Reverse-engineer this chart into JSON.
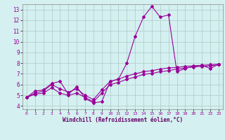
{
  "xlabel": "Windchill (Refroidissement éolien,°C)",
  "bg_color": "#d4f0f0",
  "line_color": "#990099",
  "grid_color": "#b0c8c8",
  "xlim": [
    -0.5,
    23.5
  ],
  "ylim": [
    3.7,
    13.5
  ],
  "yticks": [
    4,
    5,
    6,
    7,
    8,
    9,
    10,
    11,
    12,
    13
  ],
  "xticks": [
    0,
    1,
    2,
    3,
    4,
    5,
    6,
    7,
    8,
    9,
    10,
    11,
    12,
    13,
    14,
    15,
    16,
    17,
    18,
    19,
    20,
    21,
    22,
    23
  ],
  "line1_x": [
    0,
    1,
    2,
    3,
    4,
    5,
    6,
    7,
    8,
    9,
    10,
    11,
    12,
    13,
    14,
    15,
    16,
    17,
    18,
    19,
    20,
    21,
    22,
    23
  ],
  "line1_y": [
    4.8,
    5.4,
    5.5,
    6.1,
    6.3,
    5.1,
    5.8,
    4.7,
    4.3,
    4.4,
    6.3,
    6.5,
    8.0,
    10.5,
    12.3,
    13.3,
    12.3,
    12.5,
    7.2,
    7.5,
    7.7,
    7.8,
    7.5,
    7.9
  ],
  "line2_x": [
    0,
    1,
    2,
    3,
    4,
    5,
    6,
    7,
    8,
    9,
    10,
    11,
    12,
    13,
    14,
    15,
    16,
    17,
    18,
    19,
    20,
    21,
    22,
    23
  ],
  "line2_y": [
    4.8,
    5.2,
    5.4,
    6.0,
    5.6,
    5.3,
    5.6,
    5.0,
    4.6,
    5.5,
    6.3,
    6.5,
    6.8,
    7.0,
    7.2,
    7.3,
    7.45,
    7.55,
    7.6,
    7.7,
    7.75,
    7.8,
    7.85,
    7.9
  ],
  "line3_x": [
    0,
    1,
    2,
    3,
    4,
    5,
    6,
    7,
    8,
    9,
    10,
    11,
    12,
    13,
    14,
    15,
    16,
    17,
    18,
    19,
    20,
    21,
    22,
    23
  ],
  "line3_y": [
    4.8,
    5.1,
    5.2,
    5.7,
    5.2,
    5.0,
    5.2,
    4.8,
    4.4,
    5.2,
    6.0,
    6.2,
    6.5,
    6.7,
    6.95,
    7.05,
    7.2,
    7.3,
    7.45,
    7.55,
    7.65,
    7.7,
    7.75,
    7.85
  ],
  "marker": "D",
  "markersize": 2,
  "linewidth": 0.8
}
